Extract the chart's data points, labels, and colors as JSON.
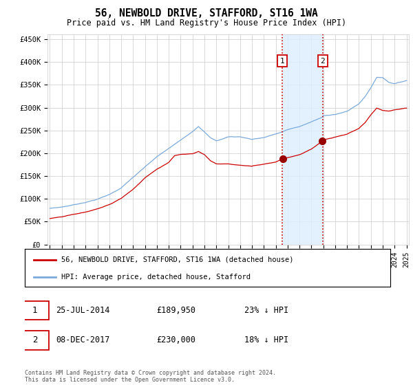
{
  "title": "56, NEWBOLD DRIVE, STAFFORD, ST16 1WA",
  "subtitle": "Price paid vs. HM Land Registry's House Price Index (HPI)",
  "footer": "Contains HM Land Registry data © Crown copyright and database right 2024.\nThis data is licensed under the Open Government Licence v3.0.",
  "legend_line1": "56, NEWBOLD DRIVE, STAFFORD, ST16 1WA (detached house)",
  "legend_line2": "HPI: Average price, detached house, Stafford",
  "transaction1": {
    "label": "1",
    "date": "25-JUL-2014",
    "price": 189950,
    "pct": "23% ↓ HPI",
    "date_num": 2014.56
  },
  "transaction2": {
    "label": "2",
    "date": "08-DEC-2017",
    "price": 230000,
    "pct": "18% ↓ HPI",
    "date_num": 2017.94
  },
  "hpi_color": "#7aaadd",
  "hpi_fill_color": "#ddeeff",
  "price_color": "#cc0000",
  "marker_color": "#990000",
  "vline_color": "#cc0000",
  "box_color": "#cc0000",
  "grid_color": "#cccccc",
  "bg_color": "#ffffff",
  "ylim": [
    0,
    460000
  ],
  "yticks": [
    0,
    50000,
    100000,
    150000,
    200000,
    250000,
    300000,
    350000,
    400000,
    450000
  ],
  "ytick_labels": [
    "£0",
    "£50K",
    "£100K",
    "£150K",
    "£200K",
    "£250K",
    "£300K",
    "£350K",
    "£400K",
    "£450K"
  ],
  "start_year": 1995,
  "end_year": 2025,
  "hpi_anchors_x": [
    1995.0,
    1996.0,
    1997.0,
    1998.0,
    1999.0,
    2000.0,
    2001.0,
    2002.0,
    2003.0,
    2004.0,
    2005.0,
    2006.0,
    2007.0,
    2007.5,
    2008.0,
    2008.5,
    2009.0,
    2009.5,
    2010.0,
    2011.0,
    2012.0,
    2013.0,
    2014.0,
    2014.56,
    2015.0,
    2016.0,
    2017.0,
    2017.94,
    2018.0,
    2019.0,
    2020.0,
    2021.0,
    2021.5,
    2022.0,
    2022.5,
    2023.0,
    2023.5,
    2024.0,
    2024.5,
    2025.0
  ],
  "hpi_anchors_y": [
    79000,
    82000,
    87000,
    93000,
    100000,
    110000,
    125000,
    148000,
    170000,
    192000,
    210000,
    228000,
    248000,
    260000,
    248000,
    235000,
    228000,
    232000,
    237000,
    237000,
    232000,
    236000,
    244000,
    248000,
    253000,
    260000,
    270000,
    280000,
    283000,
    287000,
    293000,
    310000,
    325000,
    345000,
    368000,
    368000,
    358000,
    355000,
    358000,
    362000
  ],
  "pp_anchors_x": [
    1995.0,
    1996.0,
    1997.0,
    1998.0,
    1999.0,
    2000.0,
    2001.0,
    2002.0,
    2003.0,
    2004.0,
    2005.0,
    2005.5,
    2006.0,
    2007.0,
    2007.5,
    2008.0,
    2008.5,
    2009.0,
    2010.0,
    2011.0,
    2012.0,
    2013.0,
    2014.0,
    2014.56,
    2015.0,
    2016.0,
    2017.0,
    2017.94,
    2018.0,
    2019.0,
    2020.0,
    2021.0,
    2021.5,
    2022.0,
    2022.5,
    2023.0,
    2023.5,
    2024.0,
    2024.5,
    2025.0
  ],
  "pp_anchors_y": [
    57000,
    60000,
    65000,
    70000,
    77000,
    86000,
    100000,
    120000,
    145000,
    165000,
    180000,
    195000,
    198000,
    200000,
    205000,
    198000,
    185000,
    178000,
    178000,
    175000,
    173000,
    178000,
    183000,
    189950,
    193000,
    200000,
    212000,
    230000,
    232000,
    238000,
    244000,
    256000,
    268000,
    285000,
    300000,
    295000,
    293000,
    296000,
    298000,
    300000
  ]
}
